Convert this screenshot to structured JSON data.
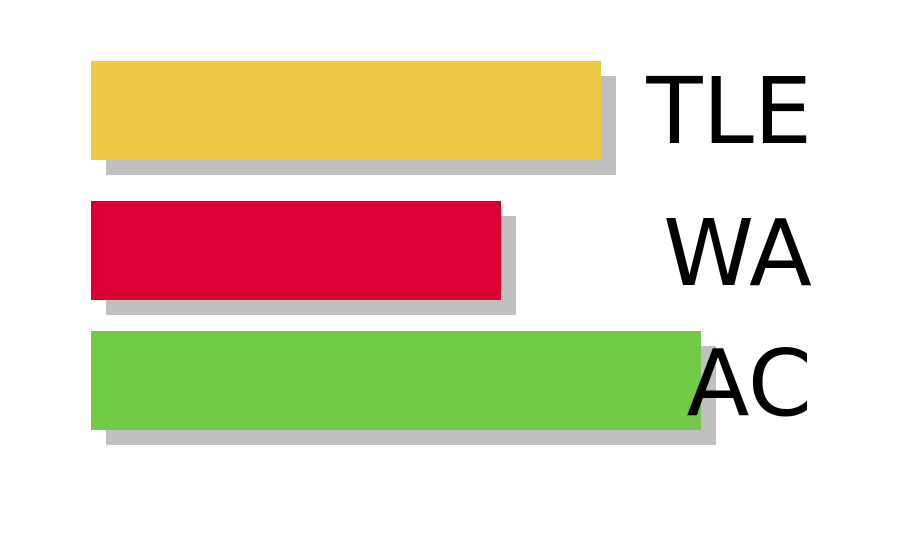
{
  "chart_data": {
    "type": "bar",
    "orientation": "horizontal",
    "categories": [
      "TLE",
      "WA",
      "AC"
    ],
    "values": [
      51,
      41,
      61
    ],
    "colors": [
      "#efc845",
      "#da0034",
      "#73ca46"
    ],
    "shadow_color": "#c0c0c0",
    "xlim": [
      0,
      100
    ],
    "grid": false,
    "title": "",
    "xlabel": "",
    "ylabel": ""
  }
}
